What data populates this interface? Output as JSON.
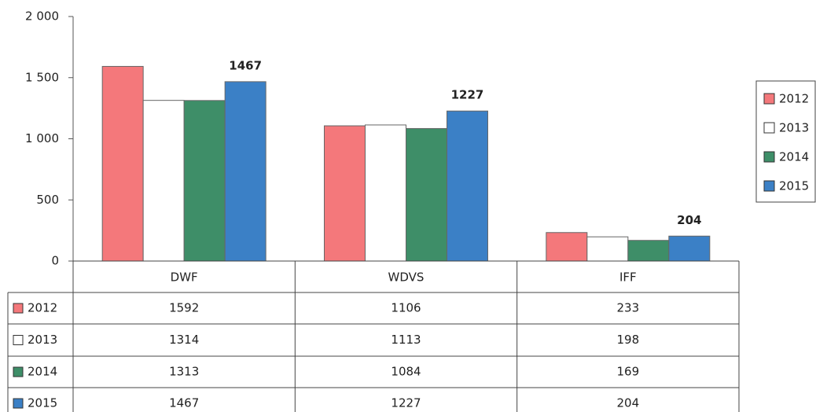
{
  "chart_data": {
    "type": "bar",
    "categories": [
      "DWF",
      "WDVS",
      "IFF"
    ],
    "series": [
      {
        "name": "2012",
        "color": "#f4787b",
        "values": [
          1592,
          1106,
          233
        ]
      },
      {
        "name": "2013",
        "color": "#ffffff",
        "values": [
          1314,
          1113,
          198
        ]
      },
      {
        "name": "2014",
        "color": "#3e8e68",
        "values": [
          1313,
          1084,
          169
        ]
      },
      {
        "name": "2015",
        "color": "#3b80c6",
        "values": [
          1467,
          1227,
          204
        ],
        "data_labels": true
      }
    ],
    "ylim": [
      0,
      2000
    ],
    "yticks": [
      0,
      500,
      {
        "value": 1000,
        "label": "1 000"
      },
      {
        "value": 1500,
        "label": "1 500"
      },
      {
        "value": 2000,
        "label": "2 000"
      }
    ],
    "legend": "right",
    "data_table": true
  }
}
